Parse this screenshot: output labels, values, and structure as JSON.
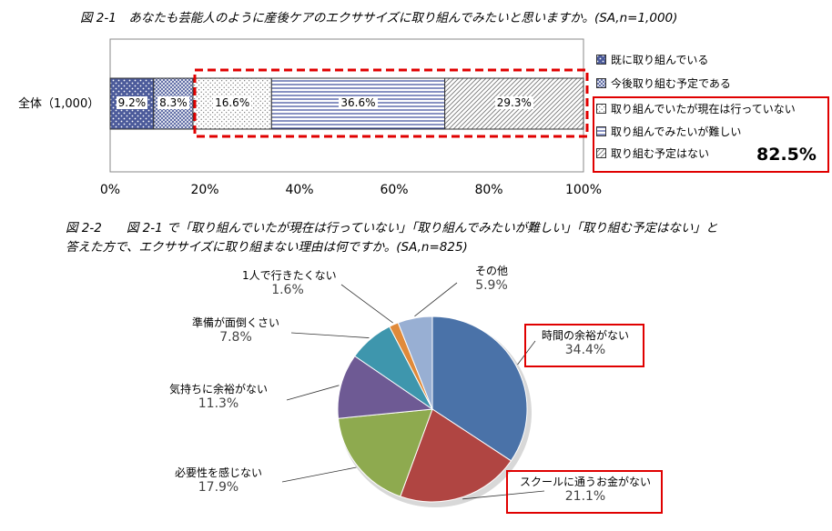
{
  "chart_data": [
    {
      "type": "bar",
      "title": "図 2-1　あなたも芸能人のように産後ケアのエクササイズに取り組んでみたいと思いますか。(SA,n=1,000)",
      "orientation": "horizontal-stacked",
      "categories": [
        "全体（1,000）"
      ],
      "series": [
        {
          "name": "既に取り組んでいる",
          "values": [
            9.2
          ],
          "label": "9.2%",
          "color": "#4b5a9a"
        },
        {
          "name": "今後取り組む予定である",
          "values": [
            8.3
          ],
          "label": "8.3%",
          "color": "#7a88c8"
        },
        {
          "name": "取り組んでいたが現在は行っていない",
          "values": [
            16.6
          ],
          "label": "16.6%",
          "color": "#bbbbbb"
        },
        {
          "name": "取り組んでみたいが難しい",
          "values": [
            36.6
          ],
          "label": "36.6%",
          "color": "#3a4a9a"
        },
        {
          "name": "取り組む予定はない",
          "values": [
            29.3
          ],
          "label": "29.3%",
          "color": "#888888"
        }
      ],
      "xlim": [
        0,
        100
      ],
      "xticks": [
        "0%",
        "20%",
        "40%",
        "60%",
        "80%",
        "100%"
      ],
      "annotation": "82.5%"
    },
    {
      "type": "pie",
      "title_line1": "図 2-2　　図 2-1 で「取り組んでいたが現在は行っていない」「取り組んでみたいが難しい」「取り組む予定はない」と",
      "title_line2": "答えた方で、エクササイズに取り組まない理由は何ですか。(SA,n=825)",
      "slices": [
        {
          "label": "時間の余裕がない",
          "value": 34.4,
          "pct": "34.4%",
          "color": "#4a72a8"
        },
        {
          "label": "スクールに通うお金がない",
          "value": 21.1,
          "pct": "21.1%",
          "color": "#b04542"
        },
        {
          "label": "必要性を感じない",
          "value": 17.9,
          "pct": "17.9%",
          "color": "#8eaa4f"
        },
        {
          "label": "気持ちに余裕がない",
          "value": 11.3,
          "pct": "11.3%",
          "color": "#6e5a94"
        },
        {
          "label": "準備が面倒くさい",
          "value": 7.8,
          "pct": "7.8%",
          "color": "#3e96ad"
        },
        {
          "label": "1人で行きたくない",
          "value": 1.6,
          "pct": "1.6%",
          "color": "#e08a3a"
        },
        {
          "label": "その他",
          "value": 5.9,
          "pct": "5.9%",
          "color": "#98afd3"
        }
      ]
    }
  ]
}
